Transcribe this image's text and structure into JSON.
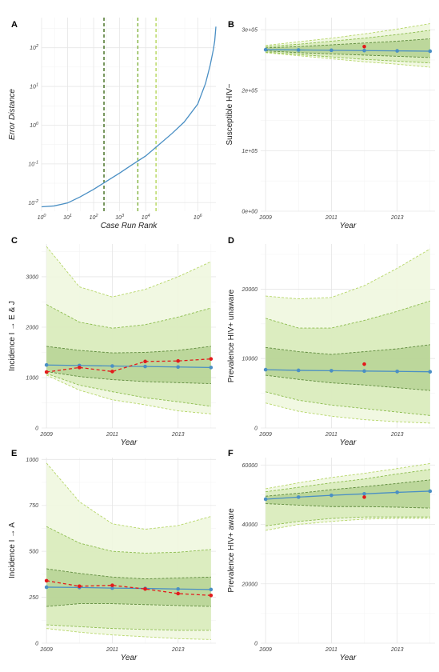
{
  "chart_data": [
    {
      "panel": "A",
      "type": "line",
      "xlabel": "Case Run Rank",
      "ylabel": "Error Distance",
      "xscale": "log",
      "yscale": "log",
      "xlim": [
        1,
        5000000
      ],
      "ylim": [
        0.006,
        600
      ],
      "x_ticks": [
        {
          "v": 1,
          "base": "10",
          "exp": "0"
        },
        {
          "v": 10,
          "base": "10",
          "exp": "1"
        },
        {
          "v": 100,
          "base": "10",
          "exp": "2"
        },
        {
          "v": 1000,
          "base": "10",
          "exp": "3"
        },
        {
          "v": 10000,
          "base": "10",
          "exp": "4"
        },
        {
          "v": 1000000,
          "base": "10",
          "exp": "6"
        }
      ],
      "y_ticks": [
        {
          "v": 0.01,
          "base": "10",
          "exp": "-2"
        },
        {
          "v": 0.1,
          "base": "10",
          "exp": "-1"
        },
        {
          "v": 1,
          "base": "10",
          "exp": "0"
        },
        {
          "v": 10,
          "base": "10",
          "exp": "1"
        },
        {
          "v": 100,
          "base": "10",
          "exp": "2"
        }
      ],
      "series": [
        {
          "color": "#4a8fc4",
          "x": [
            1,
            3,
            10,
            30,
            100,
            300,
            1000,
            3000,
            10000,
            30000,
            100000,
            300000,
            1000000,
            2000000,
            3000000,
            4000000,
            4500000,
            5000000
          ],
          "y": [
            0.0078,
            0.0082,
            0.0098,
            0.014,
            0.022,
            0.035,
            0.058,
            0.095,
            0.16,
            0.3,
            0.6,
            1.2,
            3.5,
            12,
            35,
            90,
            150,
            350
          ]
        }
      ],
      "vlines": [
        {
          "x": 250,
          "color": "#3e6b1a"
        },
        {
          "x": 5000,
          "color": "#7fb03a"
        },
        {
          "x": 25000,
          "color": "#b5d65a"
        }
      ]
    },
    {
      "panel": "B",
      "type": "line",
      "xlabel": "Year",
      "ylabel": "Susceptible HIV−",
      "xlim": [
        2009,
        2014
      ],
      "ylim": [
        0,
        320000
      ],
      "x_ticks": [
        {
          "v": 2009,
          "label": "2009"
        },
        {
          "v": 2011,
          "label": "2011"
        },
        {
          "v": 2013,
          "label": "2013"
        }
      ],
      "y_ticks": [
        {
          "v": 0,
          "label": "0e+00"
        },
        {
          "v": 100000,
          "label": "1e+05"
        },
        {
          "v": 200000,
          "label": "2e+05"
        },
        {
          "v": 300000,
          "label": "3e+05"
        }
      ],
      "x": [
        2009,
        2010,
        2011,
        2012,
        2013,
        2014
      ],
      "bands": [
        {
          "upper": [
            274000,
            280000,
            286000,
            293000,
            301000,
            310000
          ],
          "lower": [
            262000,
            257000,
            252000,
            247000,
            243000,
            238000
          ],
          "fill": "#eff7df",
          "stroke": "#b6d668"
        },
        {
          "upper": [
            272000,
            276000,
            281000,
            286000,
            292000,
            299000
          ],
          "lower": [
            263000,
            259000,
            255000,
            251000,
            248000,
            245000
          ],
          "fill": "#d9ebbc",
          "stroke": "#8cbc4e"
        },
        {
          "upper": [
            270000,
            272000,
            275000,
            278000,
            281000,
            285000
          ],
          "lower": [
            265000,
            262000,
            260000,
            258000,
            256000,
            254000
          ],
          "fill": "#b8d497",
          "stroke": "#5e8a3c"
        }
      ],
      "series": [
        {
          "name": "",
          "color": "#4a8fc4",
          "dashed": false,
          "x": [
            2009,
            2010,
            2011,
            2012,
            2013,
            2014
          ],
          "y": [
            267000,
            266500,
            266000,
            265500,
            265000,
            264500
          ]
        },
        {
          "name": "",
          "color": "#e31a1c",
          "dashed": false,
          "points_only": true,
          "x": [
            2012
          ],
          "y": [
            272000
          ]
        }
      ]
    },
    {
      "panel": "C",
      "type": "line",
      "xlabel": "Year",
      "ylabel": "Incidence I → E & J",
      "xlim": [
        2009,
        2014
      ],
      "ylim": [
        0,
        3650
      ],
      "x_ticks": [
        {
          "v": 2009,
          "label": "2009"
        },
        {
          "v": 2011,
          "label": "2011"
        },
        {
          "v": 2013,
          "label": "2013"
        }
      ],
      "y_ticks": [
        {
          "v": 0,
          "label": "0"
        },
        {
          "v": 1000,
          "label": "1000"
        },
        {
          "v": 2000,
          "label": "2000"
        },
        {
          "v": 3000,
          "label": "3000"
        }
      ],
      "x": [
        2009,
        2010,
        2011,
        2012,
        2013,
        2014
      ],
      "bands": [
        {
          "upper": [
            3600,
            2800,
            2600,
            2750,
            3000,
            3300
          ],
          "lower": [
            1050,
            750,
            560,
            460,
            340,
            280
          ],
          "fill": "#eff7df",
          "stroke": "#b6d668"
        },
        {
          "upper": [
            2450,
            2100,
            1980,
            2050,
            2200,
            2380
          ],
          "lower": [
            1080,
            850,
            720,
            600,
            520,
            430
          ],
          "fill": "#d9ebbc",
          "stroke": "#8cbc4e"
        },
        {
          "upper": [
            1620,
            1540,
            1490,
            1500,
            1540,
            1620
          ],
          "lower": [
            1120,
            1020,
            960,
            920,
            900,
            880
          ],
          "fill": "#b8d497",
          "stroke": "#5e8a3c"
        }
      ],
      "series": [
        {
          "name": "",
          "color": "#4a8fc4",
          "dashed": false,
          "x": [
            2009,
            2010,
            2011,
            2012,
            2013,
            2014
          ],
          "y": [
            1250,
            1240,
            1230,
            1220,
            1210,
            1200
          ]
        },
        {
          "name": "",
          "color": "#e31a1c",
          "dashed": true,
          "x": [
            2009,
            2010,
            2011,
            2012,
            2013,
            2014
          ],
          "y": [
            1110,
            1200,
            1120,
            1320,
            1330,
            1370
          ]
        }
      ]
    },
    {
      "panel": "D",
      "type": "line",
      "xlabel": "Year",
      "ylabel": "Prevalence HIV+ unaware",
      "xlim": [
        2009,
        2014
      ],
      "ylim": [
        0,
        26500
      ],
      "x_ticks": [
        {
          "v": 2009,
          "label": "2009"
        },
        {
          "v": 2011,
          "label": "2011"
        },
        {
          "v": 2013,
          "label": "2013"
        }
      ],
      "y_ticks": [
        {
          "v": 0,
          "label": "0"
        },
        {
          "v": 10000,
          "label": "10000"
        },
        {
          "v": 20000,
          "label": "20000"
        }
      ],
      "x": [
        2009,
        2010,
        2011,
        2012,
        2013,
        2014
      ],
      "bands": [
        {
          "upper": [
            19000,
            18600,
            18800,
            20500,
            23000,
            25800
          ],
          "lower": [
            3600,
            2400,
            1700,
            1200,
            900,
            700
          ],
          "fill": "#eff7df",
          "stroke": "#b6d668"
        },
        {
          "upper": [
            15800,
            14400,
            14400,
            15500,
            16800,
            18300
          ],
          "lower": [
            5200,
            4000,
            3300,
            2800,
            2300,
            1800
          ],
          "fill": "#d9ebbc",
          "stroke": "#8cbc4e"
        },
        {
          "upper": [
            11600,
            11000,
            10600,
            11000,
            11400,
            12000
          ],
          "lower": [
            7600,
            7000,
            6500,
            6200,
            5800,
            5400
          ],
          "fill": "#b8d497",
          "stroke": "#5e8a3c"
        }
      ],
      "series": [
        {
          "name": "",
          "color": "#4a8fc4",
          "dashed": false,
          "x": [
            2009,
            2010,
            2011,
            2012,
            2013,
            2014
          ],
          "y": [
            8400,
            8300,
            8250,
            8200,
            8150,
            8100
          ]
        },
        {
          "name": "",
          "color": "#e31a1c",
          "dashed": false,
          "points_only": true,
          "x": [
            2012
          ],
          "y": [
            9200
          ]
        }
      ]
    },
    {
      "panel": "E",
      "type": "line",
      "xlabel": "Year",
      "ylabel": "Incidence I → A",
      "xlim": [
        2009,
        2014
      ],
      "ylim": [
        0,
        1010
      ],
      "x_ticks": [
        {
          "v": 2009,
          "label": "2009"
        },
        {
          "v": 2011,
          "label": "2011"
        },
        {
          "v": 2013,
          "label": "2013"
        }
      ],
      "y_ticks": [
        {
          "v": 0,
          "label": "0"
        },
        {
          "v": 250,
          "label": "250"
        },
        {
          "v": 500,
          "label": "500"
        },
        {
          "v": 750,
          "label": "750"
        },
        {
          "v": 1000,
          "label": "1000"
        }
      ],
      "x": [
        2009,
        2010,
        2011,
        2012,
        2013,
        2014
      ],
      "bands": [
        {
          "upper": [
            980,
            770,
            650,
            620,
            640,
            690
          ],
          "lower": [
            80,
            60,
            45,
            35,
            25,
            20
          ],
          "fill": "#eff7df",
          "stroke": "#b6d668"
        },
        {
          "upper": [
            635,
            545,
            500,
            490,
            495,
            510
          ],
          "lower": [
            100,
            90,
            80,
            75,
            70,
            70
          ],
          "fill": "#d9ebbc",
          "stroke": "#8cbc4e"
        },
        {
          "upper": [
            405,
            380,
            360,
            350,
            355,
            360
          ],
          "lower": [
            200,
            215,
            215,
            210,
            205,
            200
          ],
          "fill": "#b8d497",
          "stroke": "#5e8a3c"
        }
      ],
      "series": [
        {
          "name": "",
          "color": "#4a8fc4",
          "dashed": false,
          "x": [
            2009,
            2010,
            2011,
            2012,
            2013,
            2014
          ],
          "y": [
            305,
            303,
            300,
            298,
            295,
            292
          ]
        },
        {
          "name": "",
          "color": "#e31a1c",
          "dashed": true,
          "x": [
            2009,
            2010,
            2011,
            2012,
            2013,
            2014
          ],
          "y": [
            340,
            310,
            315,
            295,
            270,
            260
          ]
        }
      ]
    },
    {
      "panel": "F",
      "type": "line",
      "xlabel": "Year",
      "ylabel": "Prevalence HIV+ aware",
      "xlim": [
        2009,
        2014
      ],
      "ylim": [
        0,
        62500
      ],
      "x_ticks": [
        {
          "v": 2009,
          "label": "2009"
        },
        {
          "v": 2011,
          "label": "2011"
        },
        {
          "v": 2013,
          "label": "2013"
        }
      ],
      "y_ticks": [
        {
          "v": 0,
          "label": "0"
        },
        {
          "v": 20000,
          "label": "20000"
        },
        {
          "v": 40000,
          "label": "40000"
        },
        {
          "v": 60000,
          "label": "60000"
        }
      ],
      "x": [
        2009,
        2010,
        2011,
        2012,
        2013,
        2014
      ],
      "bands": [
        {
          "upper": [
            52000,
            54000,
            55800,
            57200,
            58800,
            60500
          ],
          "lower": [
            38000,
            40000,
            41000,
            41800,
            42000,
            42000
          ],
          "fill": "#eff7df",
          "stroke": "#b6d668"
        },
        {
          "upper": [
            51000,
            52500,
            54000,
            55300,
            57000,
            58500
          ],
          "lower": [
            39500,
            41000,
            42000,
            42500,
            42500,
            42500
          ],
          "fill": "#d9ebbc",
          "stroke": "#8cbc4e"
        },
        {
          "upper": [
            49500,
            50500,
            51700,
            52700,
            53800,
            55000
          ],
          "lower": [
            47000,
            46500,
            46000,
            46000,
            45800,
            45500
          ],
          "fill": "#b8d497",
          "stroke": "#5e8a3c"
        }
      ],
      "series": [
        {
          "name": "",
          "color": "#4a8fc4",
          "dashed": false,
          "x": [
            2009,
            2010,
            2011,
            2012,
            2013,
            2014
          ],
          "y": [
            48500,
            49200,
            49800,
            50300,
            50800,
            51200
          ]
        },
        {
          "name": "",
          "color": "#e31a1c",
          "dashed": false,
          "points_only": true,
          "x": [
            2012
          ],
          "y": [
            49200
          ]
        }
      ]
    }
  ]
}
